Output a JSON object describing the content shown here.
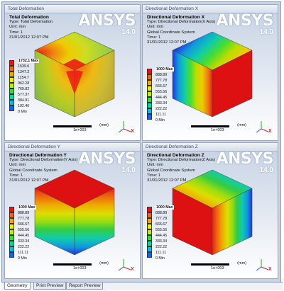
{
  "brand": {
    "name": "ANSYS",
    "version": "14.0"
  },
  "colors": {
    "legend": [
      "#ee1111",
      "#ee6611",
      "#eeaa00",
      "#eeee00",
      "#bbee00",
      "#33dd33",
      "#00dd99",
      "#11bbdd",
      "#1166ee",
      "#1111dd"
    ]
  },
  "panels": [
    {
      "title": "Total Deformation",
      "result_name": "Total Deformation",
      "type_line": "Type: Total Deformation",
      "unit_line": "Unit: mm",
      "system_line": "",
      "time_line": "Time: 1",
      "date_line": "31/01/2012 12:07 PM",
      "legend_values": [
        "1732.1 Max",
        "1539.6",
        "1347.2",
        "1154.7",
        "962.28",
        "769.82",
        "577.37",
        "384.91",
        "192.46",
        "0 Min"
      ],
      "scale_unit": "(mm)",
      "scale_exp": "1e+003"
    },
    {
      "title": "Directional Deformation X",
      "result_name": "Directional Deformation X",
      "type_line": "Type: Directional Deformation(X Axis)",
      "unit_line": "Unit: mm",
      "system_line": "Global Coordinate System",
      "time_line": "Time: 1",
      "date_line": "31/01/2012 12:07 PM",
      "legend_values": [
        "1000 Max",
        "888.89",
        "777.78",
        "666.67",
        "555.56",
        "444.45",
        "333.34",
        "222.22",
        "111.11",
        "0 Min"
      ],
      "scale_unit": "(mm)",
      "scale_exp": "1e+003"
    },
    {
      "title": "Directional Deformation Y",
      "result_name": "Directional Deformation Y",
      "type_line": "Type: Directional Deformation(Y Axis)",
      "unit_line": "Unit: mm",
      "system_line": "Global Coordinate System",
      "time_line": "Time: 1",
      "date_line": "31/01/2012 12:07 PM",
      "legend_values": [
        "1000 Max",
        "888.89",
        "777.78",
        "666.67",
        "555.56",
        "444.45",
        "333.34",
        "222.22",
        "111.11",
        "0 Min"
      ],
      "scale_unit": "(mm)",
      "scale_exp": "1e+003"
    },
    {
      "title": "Directional Deformation Z",
      "result_name": "Directional Deformation Z",
      "type_line": "Type: Directional Deformation(Z Axis)",
      "unit_line": "Unit: mm",
      "system_line": "Global Coordinate System",
      "time_line": "Time: 1",
      "date_line": "31/01/2012 12:07 PM",
      "legend_values": [
        "1000 Max",
        "888.89",
        "777.78",
        "666.67",
        "555.56",
        "444.45",
        "333.34",
        "222.22",
        "111.11",
        "0 Min"
      ],
      "scale_unit": "(mm)",
      "scale_exp": "1e+003"
    }
  ],
  "axis_labels": {
    "x": "X",
    "y": "Y",
    "z": "Z"
  },
  "tabs": [
    {
      "label": "Geometry",
      "active": true
    },
    {
      "label": "Print Preview",
      "active": false
    },
    {
      "label": "Report Preview",
      "active": false
    }
  ]
}
